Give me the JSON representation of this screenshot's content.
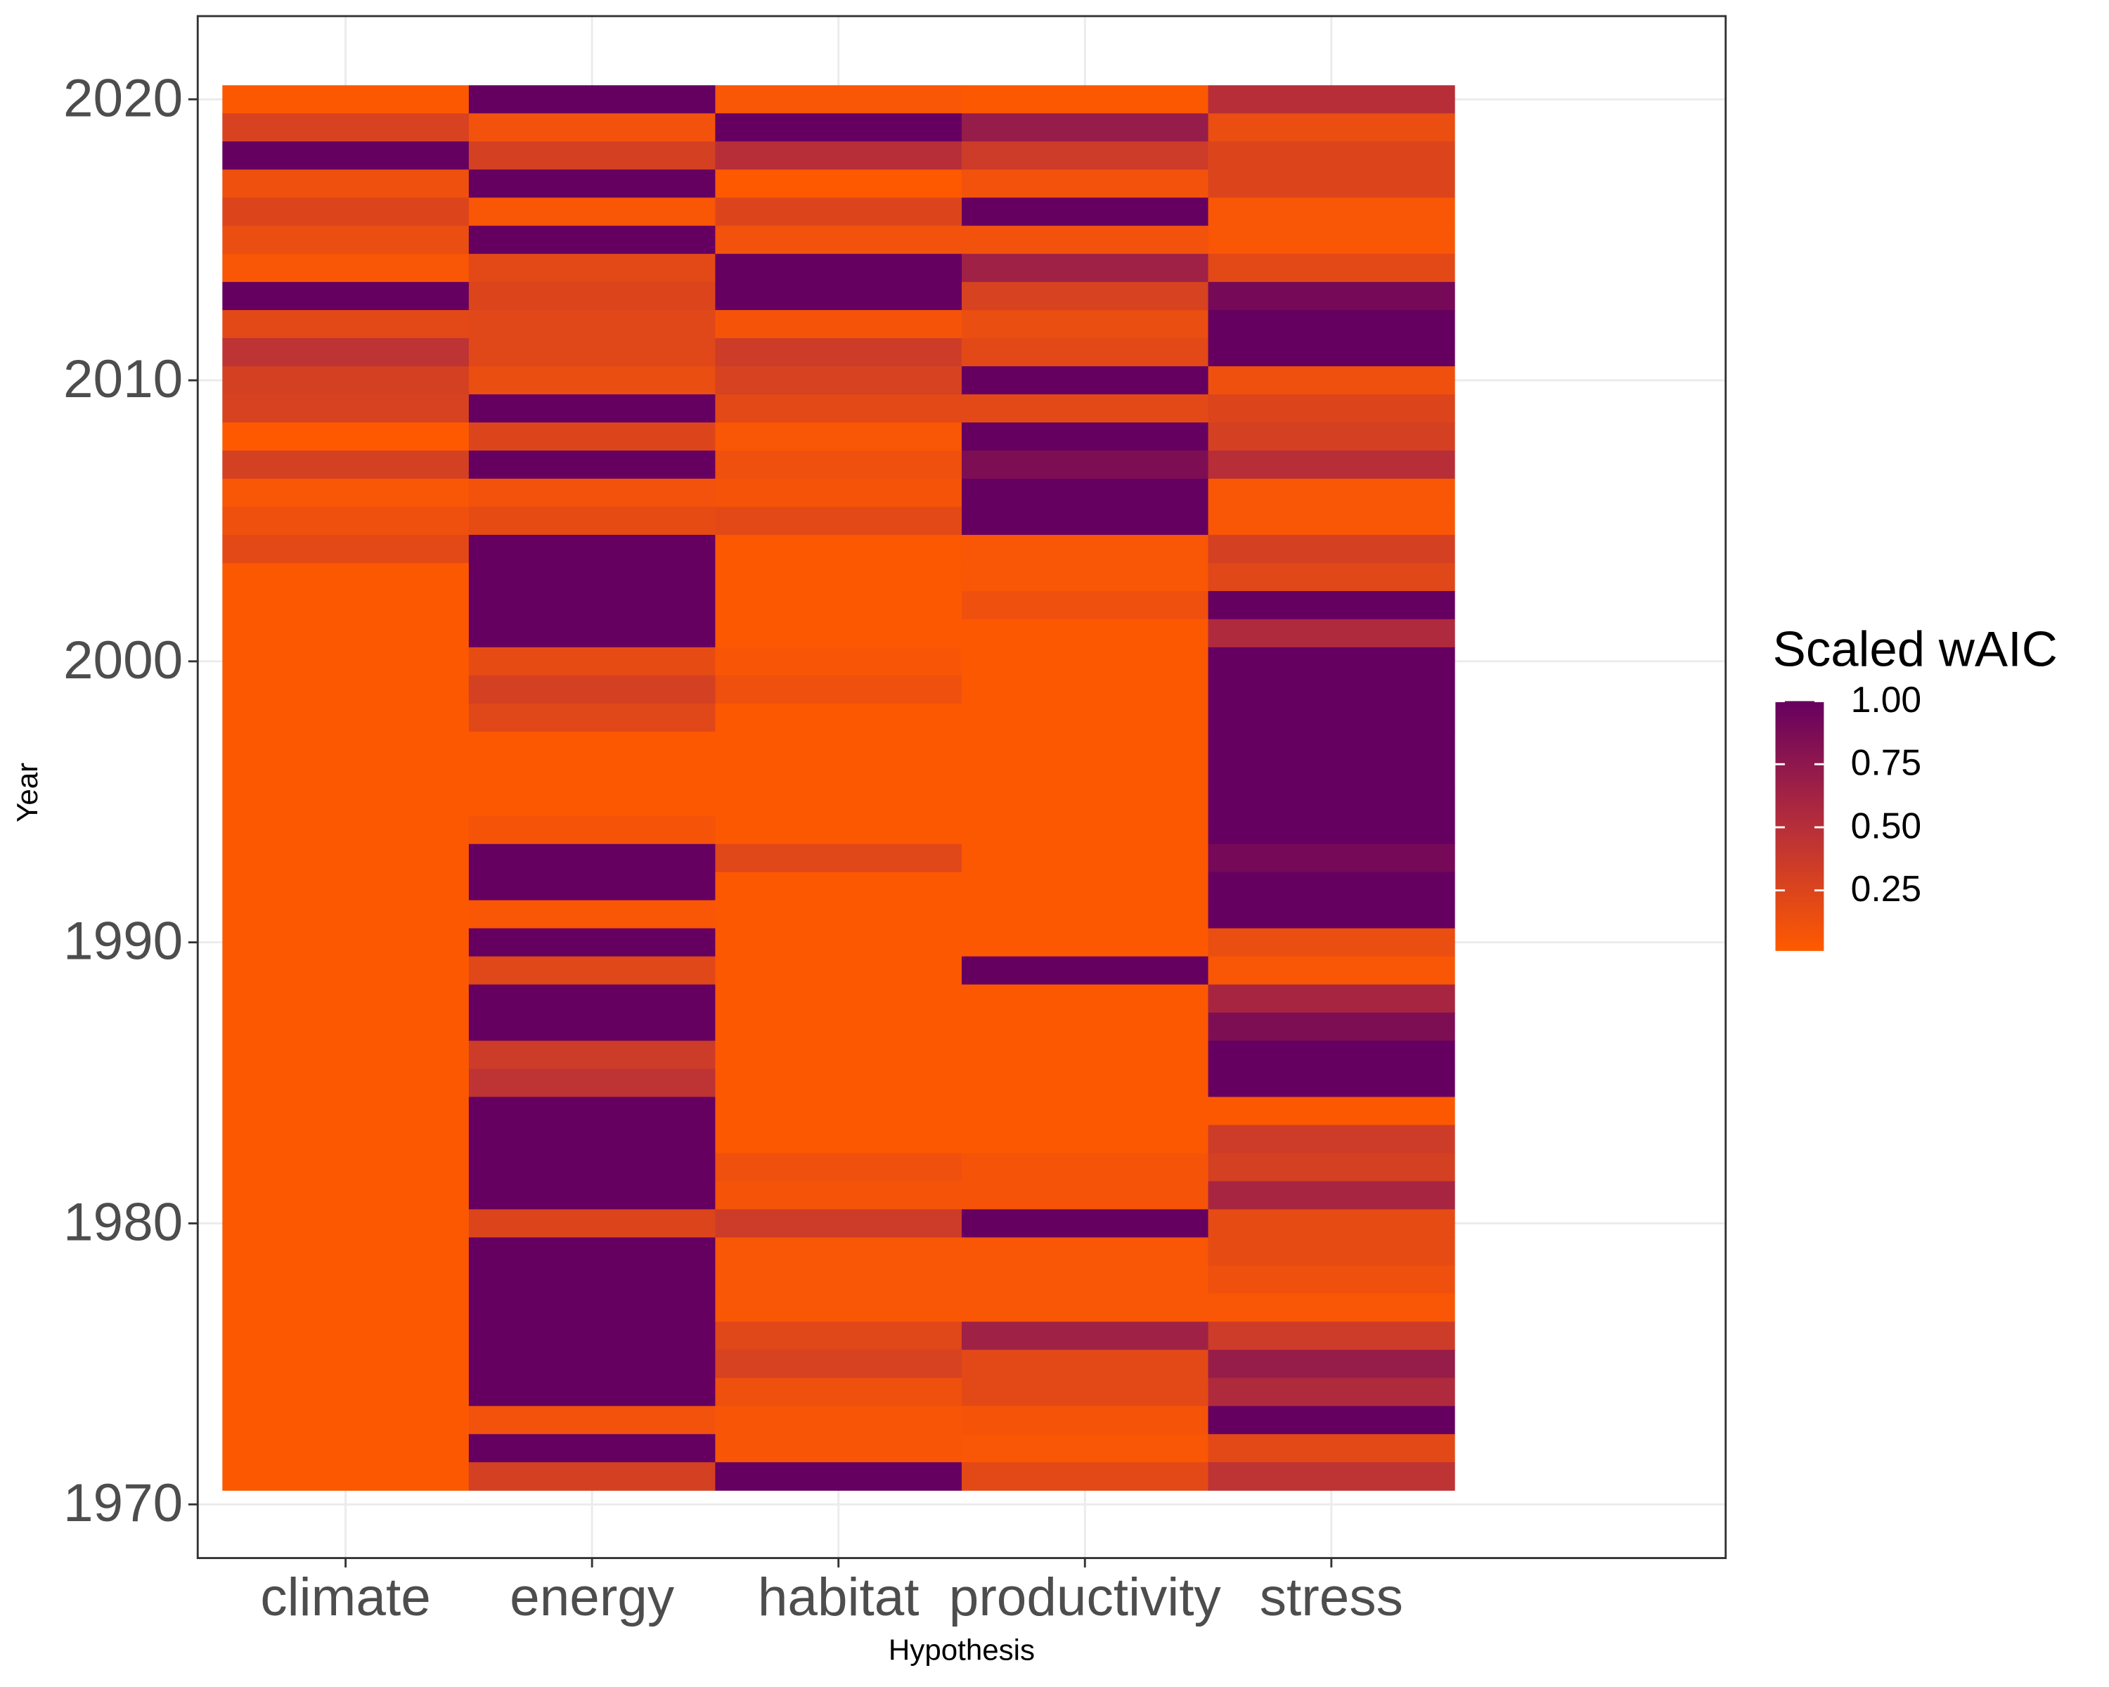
{
  "chart_data": {
    "type": "heatmap",
    "x_label": "Hypothesis",
    "y_label": "Year",
    "legend_title": "Scaled wAIC",
    "categories": [
      "climate",
      "energy",
      "habitat",
      "productivity",
      "stress"
    ],
    "y": [
      2020,
      2019,
      2018,
      2017,
      2016,
      2015,
      2014,
      2013,
      2012,
      2011,
      2010,
      2009,
      2008,
      2007,
      2006,
      2005,
      2004,
      2003,
      2002,
      2001,
      2000,
      1999,
      1998,
      1997,
      1996,
      1995,
      1994,
      1993,
      1992,
      1991,
      1990,
      1989,
      1988,
      1987,
      1986,
      1985,
      1984,
      1983,
      1982,
      1981,
      1980,
      1979,
      1978,
      1977,
      1976,
      1975,
      1974,
      1973,
      1972,
      1971
    ],
    "values": [
      [
        0.03,
        0.28,
        1.0,
        0.12,
        0.25,
        0.15,
        0.05,
        1.0,
        0.2,
        0.45,
        0.3,
        0.28,
        0.02,
        0.3,
        0.05,
        0.12,
        0.2,
        0.03,
        0.03,
        0.03,
        0.03,
        0.03,
        0.03,
        0.03,
        0.03,
        0.03,
        0.03,
        0.03,
        0.03,
        0.03,
        0.03,
        0.03,
        0.03,
        0.03,
        0.03,
        0.03,
        0.03,
        0.03,
        0.03,
        0.03,
        0.03,
        0.03,
        0.03,
        0.03,
        0.03,
        0.03,
        0.03,
        0.03,
        0.03,
        0.03
      ],
      [
        1.0,
        0.1,
        0.3,
        1.0,
        0.05,
        1.0,
        0.2,
        0.25,
        0.22,
        0.22,
        0.15,
        1.0,
        0.25,
        1.0,
        0.1,
        0.18,
        1.0,
        1.0,
        1.0,
        1.0,
        0.18,
        0.3,
        0.22,
        0.03,
        0.03,
        0.03,
        0.08,
        1.0,
        1.0,
        0.05,
        1.0,
        0.22,
        1.0,
        1.0,
        0.35,
        0.45,
        1.0,
        1.0,
        1.0,
        1.0,
        0.25,
        1.0,
        1.0,
        1.0,
        1.0,
        1.0,
        1.0,
        0.1,
        1.0,
        0.3
      ],
      [
        0.05,
        1.0,
        0.5,
        0.02,
        0.25,
        0.1,
        1.0,
        1.0,
        0.08,
        0.35,
        0.28,
        0.2,
        0.05,
        0.12,
        0.08,
        0.2,
        0.03,
        0.03,
        0.03,
        0.03,
        0.06,
        0.12,
        0.03,
        0.03,
        0.03,
        0.03,
        0.03,
        0.22,
        0.03,
        0.03,
        0.03,
        0.03,
        0.03,
        0.03,
        0.03,
        0.03,
        0.03,
        0.03,
        0.12,
        0.08,
        0.35,
        0.05,
        0.05,
        0.05,
        0.22,
        0.28,
        0.12,
        0.06,
        0.06,
        1.0
      ],
      [
        0.03,
        0.7,
        0.35,
        0.1,
        1.0,
        0.1,
        0.65,
        0.28,
        0.15,
        0.2,
        1.0,
        0.2,
        1.0,
        0.85,
        1.0,
        1.0,
        0.05,
        0.05,
        0.12,
        0.03,
        0.03,
        0.03,
        0.03,
        0.03,
        0.03,
        0.03,
        0.03,
        0.03,
        0.03,
        0.03,
        0.03,
        1.0,
        0.03,
        0.03,
        0.03,
        0.03,
        0.03,
        0.03,
        0.08,
        0.08,
        1.0,
        0.05,
        0.05,
        0.05,
        0.65,
        0.2,
        0.2,
        0.08,
        0.05,
        0.2
      ],
      [
        0.5,
        0.15,
        0.25,
        0.25,
        0.05,
        0.05,
        0.2,
        0.9,
        1.0,
        1.0,
        0.12,
        0.25,
        0.3,
        0.5,
        0.05,
        0.05,
        0.3,
        0.22,
        1.0,
        0.55,
        1.0,
        1.0,
        1.0,
        1.0,
        1.0,
        1.0,
        1.0,
        0.9,
        1.0,
        1.0,
        0.15,
        0.05,
        0.6,
        0.85,
        1.0,
        1.0,
        0.03,
        0.35,
        0.3,
        0.6,
        0.18,
        0.18,
        0.12,
        0.05,
        0.35,
        0.7,
        0.55,
        1.0,
        0.2,
        0.45
      ]
    ],
    "ylim": [
      1968.09,
      2022.96
    ],
    "yticks": [
      1970,
      1980,
      1990,
      2000,
      2010,
      2020
    ],
    "clim": [
      0.01,
      1
    ],
    "cticks": [
      {
        "value": 0.25,
        "label": "0.25"
      },
      {
        "value": 0.5,
        "label": "0.50"
      },
      {
        "value": 0.75,
        "label": "0.75"
      },
      {
        "value": 1,
        "label": "1.00"
      }
    ],
    "colors": [
      "#FF5A00",
      "#B62E3A",
      "#660060"
    ],
    "grid": true
  }
}
